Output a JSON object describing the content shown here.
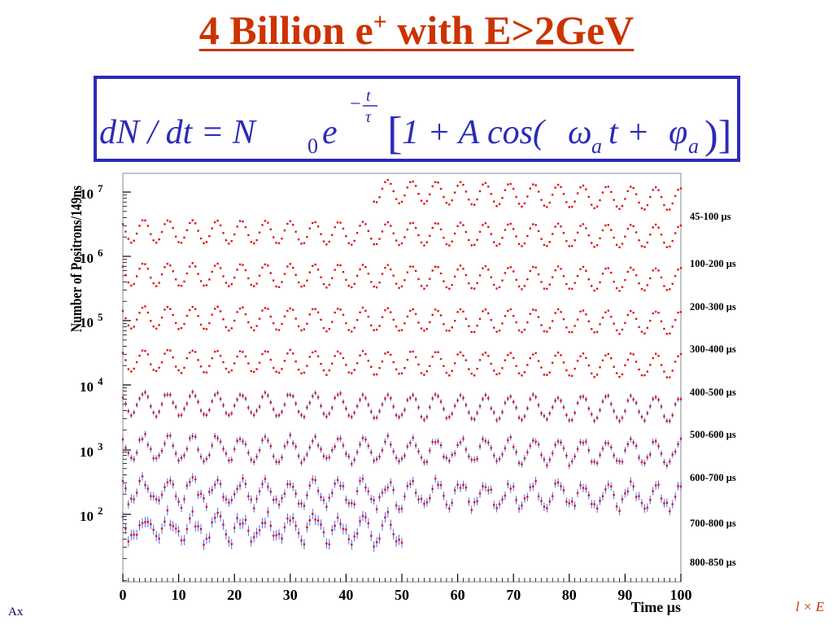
{
  "slide": {
    "title_main": "4 Billion e",
    "title_sup": "+",
    "title_rest": " with E>2GeV",
    "footer_left": "Ax",
    "footer_right": "l × E"
  },
  "formula": {
    "lhs": "dN / dt = N",
    "n_sub": "0",
    "e": "e",
    "exp_num": "t",
    "exp_den": "τ",
    "exp_sign": "−",
    "bracket_open": "[",
    "one_plus": "1 + A cos(",
    "omega": "ω",
    "omega_sub": "a",
    "t_plus": "t + ",
    "phi": "φ",
    "phi_sub": "a",
    "close": ")]"
  },
  "colors": {
    "title": "#cc3300",
    "box": "#2b2bb8",
    "points": "#dd1111",
    "errorbars": "#3344ff"
  },
  "chart_data": {
    "type": "scatter",
    "title": "",
    "xlabel": "Time μs",
    "ylabel": "Number of Positrons/149ns",
    "xlim": [
      0,
      100
    ],
    "y_scale": "log",
    "x_ticks": [
      "0",
      "10",
      "20",
      "30",
      "40",
      "50",
      "60",
      "70",
      "80",
      "90",
      "100"
    ],
    "y_tick_labels": [
      {
        "base": "10",
        "exp": "7"
      },
      {
        "base": "10",
        "exp": "6"
      },
      {
        "base": "10",
        "exp": "5"
      },
      {
        "base": "10",
        "exp": "4"
      },
      {
        "base": "10",
        "exp": "3"
      },
      {
        "base": "10",
        "exp": "2"
      }
    ],
    "period_us": 4.37,
    "series": [
      {
        "name": "45-100 μs",
        "x_start": 45,
        "x_end": 100,
        "amplitude": 0.4,
        "noise": 0.01
      },
      {
        "name": "100-200 μs",
        "x_start": 0,
        "x_end": 100,
        "amplitude": 0.4,
        "noise": 0.01
      },
      {
        "name": "200-300 μs",
        "x_start": 0,
        "x_end": 100,
        "amplitude": 0.4,
        "noise": 0.02
      },
      {
        "name": "300-400 μs",
        "x_start": 0,
        "x_end": 100,
        "amplitude": 0.4,
        "noise": 0.03
      },
      {
        "name": "400-500 μs",
        "x_start": 0,
        "x_end": 100,
        "amplitude": 0.4,
        "noise": 0.04
      },
      {
        "name": "500-600 μs",
        "x_start": 0,
        "x_end": 100,
        "amplitude": 0.4,
        "noise": 0.06
      },
      {
        "name": "600-700 μs",
        "x_start": 0,
        "x_end": 100,
        "amplitude": 0.4,
        "noise": 0.1
      },
      {
        "name": "700-800 μs",
        "x_start": 0,
        "x_end": 100,
        "amplitude": 0.4,
        "noise": 0.16
      },
      {
        "name": "800-850 μs",
        "x_start": 0,
        "x_end": 50,
        "amplitude": 0.4,
        "noise": 0.22
      }
    ]
  }
}
